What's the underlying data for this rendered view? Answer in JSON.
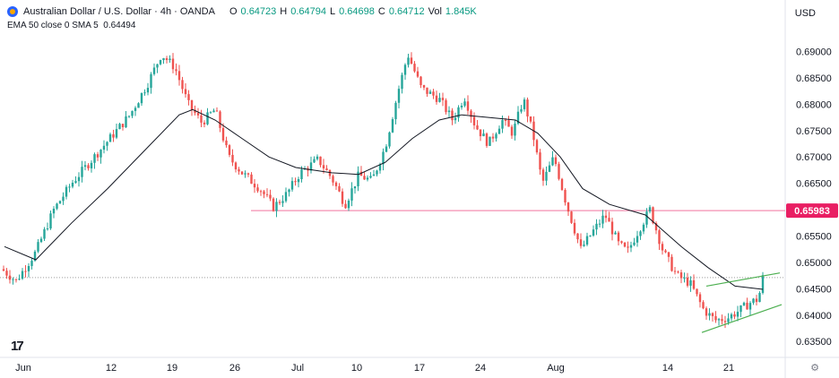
{
  "header": {
    "symbol": "Australian Dollar / U.S. Dollar · 4h · OANDA",
    "o_label": "O",
    "o_value": "0.64723",
    "h_label": "H",
    "h_value": "0.64794",
    "l_label": "L",
    "l_value": "0.64698",
    "c_label": "C",
    "c_value": "0.64712",
    "vol_label": "Vol",
    "vol_value": "1.845K",
    "indicators": "EMA 50 close 0 SMA 5",
    "indicator_value": "0.64494"
  },
  "currency": "USD",
  "logo_text": "17",
  "settings_icon": "gear-icon",
  "colors": {
    "up": "#26a69a",
    "down": "#ef5350",
    "ema": "#131722",
    "support": "#f48fb1",
    "support_label_bg": "#e91e63",
    "channel": "#4caf50",
    "price_line": "#9e9e9e"
  },
  "chart_data": {
    "type": "candlestick",
    "y_range": [
      0.633,
      0.694
    ],
    "y_ticks": [
      "0.69000",
      "0.68500",
      "0.68000",
      "0.67500",
      "0.67000",
      "0.66500",
      "0.66000",
      "0.65500",
      "0.65000",
      "0.64500",
      "0.64000",
      "0.63500"
    ],
    "x_ticks": [
      "Jun",
      "12",
      "19",
      "26",
      "Jul",
      "10",
      "17",
      "24",
      "Aug",
      "14",
      "21"
    ],
    "support_level": "0.65983",
    "current_price": 0.64712,
    "price_path": [
      [
        0,
        0.649
      ],
      [
        18,
        0.6465
      ],
      [
        40,
        0.652
      ],
      [
        60,
        0.66
      ],
      [
        80,
        0.665
      ],
      [
        100,
        0.669
      ],
      [
        120,
        0.673
      ],
      [
        145,
        0.678
      ],
      [
        165,
        0.684
      ],
      [
        180,
        0.6895
      ],
      [
        195,
        0.687
      ],
      [
        210,
        0.68
      ],
      [
        225,
        0.6765
      ],
      [
        240,
        0.679
      ],
      [
        255,
        0.67
      ],
      [
        270,
        0.667
      ],
      [
        290,
        0.664
      ],
      [
        305,
        0.6605
      ],
      [
        320,
        0.663
      ],
      [
        335,
        0.667
      ],
      [
        355,
        0.6695
      ],
      [
        370,
        0.666
      ],
      [
        385,
        0.661
      ],
      [
        400,
        0.6665
      ],
      [
        415,
        0.6655
      ],
      [
        430,
        0.672
      ],
      [
        445,
        0.683
      ],
      [
        455,
        0.6895
      ],
      [
        470,
        0.683
      ],
      [
        490,
        0.681
      ],
      [
        505,
        0.677
      ],
      [
        518,
        0.6815
      ],
      [
        530,
        0.676
      ],
      [
        545,
        0.6725
      ],
      [
        560,
        0.677
      ],
      [
        572,
        0.6745
      ],
      [
        584,
        0.681
      ],
      [
        595,
        0.674
      ],
      [
        605,
        0.665
      ],
      [
        618,
        0.67
      ],
      [
        632,
        0.661
      ],
      [
        648,
        0.6525
      ],
      [
        662,
        0.656
      ],
      [
        675,
        0.659
      ],
      [
        690,
        0.6535
      ],
      [
        700,
        0.652
      ],
      [
        712,
        0.656
      ],
      [
        725,
        0.66
      ],
      [
        740,
        0.652
      ],
      [
        755,
        0.6475
      ],
      [
        770,
        0.646
      ],
      [
        785,
        0.641
      ],
      [
        798,
        0.639
      ],
      [
        812,
        0.6395
      ],
      [
        826,
        0.641
      ],
      [
        838,
        0.6425
      ],
      [
        846,
        0.643
      ],
      [
        851,
        0.6471
      ]
    ],
    "ema_path": [
      [
        5,
        0.653
      ],
      [
        40,
        0.6505
      ],
      [
        80,
        0.6575
      ],
      [
        120,
        0.664
      ],
      [
        160,
        0.671
      ],
      [
        200,
        0.678
      ],
      [
        215,
        0.679
      ],
      [
        240,
        0.677
      ],
      [
        270,
        0.6735
      ],
      [
        300,
        0.67
      ],
      [
        330,
        0.668
      ],
      [
        370,
        0.667
      ],
      [
        400,
        0.6667
      ],
      [
        430,
        0.669
      ],
      [
        460,
        0.6735
      ],
      [
        490,
        0.677
      ],
      [
        515,
        0.678
      ],
      [
        545,
        0.6775
      ],
      [
        575,
        0.677
      ],
      [
        600,
        0.6745
      ],
      [
        625,
        0.67
      ],
      [
        650,
        0.664
      ],
      [
        680,
        0.661
      ],
      [
        720,
        0.659
      ],
      [
        760,
        0.653
      ],
      [
        790,
        0.649
      ],
      [
        820,
        0.6455
      ],
      [
        851,
        0.6449
      ]
    ],
    "channel": {
      "upper": [
        [
          788,
          0.6455
        ],
        [
          870,
          0.648
        ]
      ],
      "lower": [
        [
          783,
          0.6367
        ],
        [
          872,
          0.642
        ]
      ]
    }
  }
}
